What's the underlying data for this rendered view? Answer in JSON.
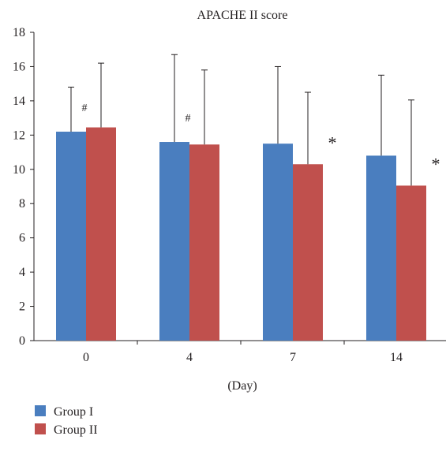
{
  "chart_data": {
    "type": "bar",
    "title": "APACHE II score",
    "xlabel": "(Day)",
    "ylabel": "",
    "categories": [
      "0",
      "4",
      "7",
      "14"
    ],
    "ylim": [
      0,
      18
    ],
    "yticks": [
      0,
      2,
      4,
      6,
      8,
      10,
      12,
      14,
      16,
      18
    ],
    "grid": false,
    "legend_position": "bottom-left",
    "series": [
      {
        "name": "Group I",
        "color": "#4a7ebf",
        "values": [
          12.2,
          11.6,
          11.5,
          10.8
        ],
        "error_upper": [
          14.8,
          16.7,
          16.0,
          15.5
        ]
      },
      {
        "name": "Group II",
        "color": "#c0504d",
        "values": [
          12.45,
          11.45,
          10.3,
          9.05
        ],
        "error_upper": [
          16.2,
          15.8,
          14.5,
          14.05
        ]
      }
    ],
    "annotations": [
      {
        "category": "0",
        "series": 0,
        "text": "#"
      },
      {
        "category": "4",
        "series": 0,
        "text": "#"
      },
      {
        "category": "7",
        "series": 1,
        "text": "*"
      },
      {
        "category": "14",
        "series": 1,
        "text": "*"
      }
    ]
  }
}
